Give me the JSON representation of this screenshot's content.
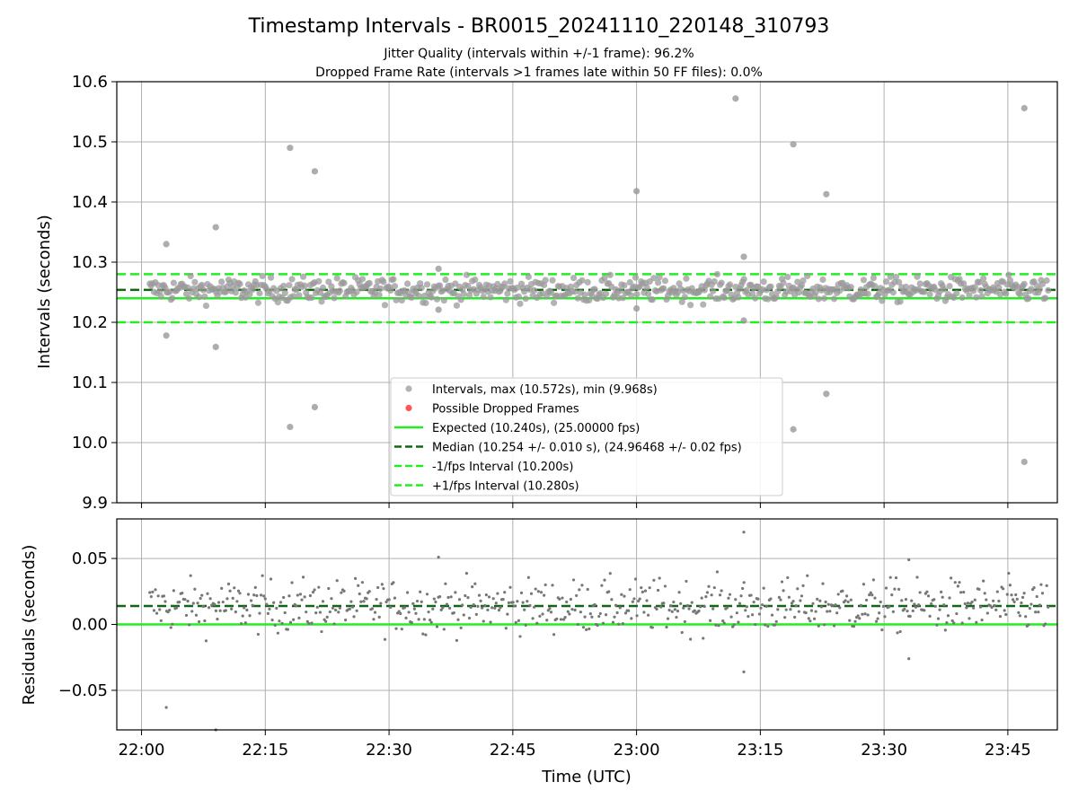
{
  "chart_data": {
    "type": "scatter",
    "title": "Timestamp Intervals - BR0015_20241110_220148_310793",
    "subtitle_lines": [
      "Jitter Quality (intervals within +/-1 frame): 96.2%",
      "Dropped Frame Rate (intervals >1 frames late within 50 FF files): 0.0%"
    ],
    "top_panel": {
      "ylabel": "Intervals (seconds)",
      "ylim": [
        9.9,
        10.6
      ],
      "yticks": [
        9.9,
        10.0,
        10.1,
        10.2,
        10.3,
        10.4,
        10.5,
        10.6
      ],
      "ytick_labels": [
        "9.9",
        "10.0",
        "10.1",
        "10.2",
        "10.3",
        "10.4",
        "10.5",
        "10.6"
      ],
      "grid": true,
      "legend_position": "lower-center",
      "legend": [
        {
          "label": "Intervals, max (10.572s), min (9.968s)",
          "kind": "marker",
          "color": "#999999"
        },
        {
          "label": "Possible Dropped Frames",
          "kind": "marker",
          "color": "#ff5555"
        },
        {
          "label": "Expected (10.240s), (25.00000 fps)",
          "kind": "solid-line",
          "color": "#22ee22"
        },
        {
          "label": "Median (10.254 +/- 0.010 s), (24.96468 +/- 0.02 fps)",
          "kind": "dashed-line",
          "color": "#116611"
        },
        {
          "label": "-1/fps Interval (10.200s)",
          "kind": "dashed-line",
          "color": "#22ee22"
        },
        {
          "label": "+1/fps Interval (10.280s)",
          "kind": "dashed-line",
          "color": "#22ee22"
        }
      ],
      "reference_lines": [
        {
          "name": "expected",
          "y": 10.24,
          "style": "solid",
          "color": "#22ee22"
        },
        {
          "name": "median",
          "y": 10.254,
          "style": "dashed",
          "color": "#116611"
        },
        {
          "name": "minus-one-frame",
          "y": 10.2,
          "style": "dashed",
          "color": "#22ee22"
        },
        {
          "name": "plus-one-frame",
          "y": 10.28,
          "style": "dashed",
          "color": "#22ee22"
        }
      ],
      "scatter_color": "#999999",
      "series_summary": {
        "x_start": "22:01",
        "x_end": "23:50",
        "interval_seconds": 10.24,
        "median": 10.254,
        "spread": 0.01
      },
      "outliers": [
        {
          "x": "22:03",
          "y": 10.33
        },
        {
          "x": "22:03",
          "y": 10.178
        },
        {
          "x": "22:09",
          "y": 10.358
        },
        {
          "x": "22:09",
          "y": 10.159
        },
        {
          "x": "22:18",
          "y": 10.49
        },
        {
          "x": "22:18",
          "y": 10.026
        },
        {
          "x": "22:21",
          "y": 10.451
        },
        {
          "x": "22:21",
          "y": 10.059
        },
        {
          "x": "22:36",
          "y": 10.289
        },
        {
          "x": "22:36",
          "y": 10.221
        },
        {
          "x": "23:00",
          "y": 10.418
        },
        {
          "x": "23:00",
          "y": 10.223
        },
        {
          "x": "23:12",
          "y": 10.572
        },
        {
          "x": "23:13",
          "y": 10.309
        },
        {
          "x": "23:13",
          "y": 10.203
        },
        {
          "x": "23:19",
          "y": 10.496
        },
        {
          "x": "23:19",
          "y": 10.022
        },
        {
          "x": "23:23",
          "y": 10.413
        },
        {
          "x": "23:23",
          "y": 10.081
        },
        {
          "x": "23:47",
          "y": 10.556
        },
        {
          "x": "23:47",
          "y": 9.968
        }
      ]
    },
    "bottom_panel": {
      "ylabel": "Residuals (seconds)",
      "ylim": [
        -0.08,
        0.08
      ],
      "yticks": [
        -0.05,
        0.0,
        0.05
      ],
      "ytick_labels": [
        "−0.05",
        "0.00",
        "0.05"
      ],
      "grid": true,
      "reference_lines": [
        {
          "name": "zero",
          "y": 0.0,
          "style": "solid",
          "color": "#22ee22"
        },
        {
          "name": "median-offset",
          "y": 0.014,
          "style": "dashed",
          "color": "#116611"
        }
      ],
      "scatter_color": "#777777",
      "outliers": [
        {
          "x": "22:03",
          "y": -0.063
        },
        {
          "x": "22:09",
          "y": -0.08
        },
        {
          "x": "22:36",
          "y": 0.051
        },
        {
          "x": "23:13",
          "y": 0.07
        },
        {
          "x": "23:13",
          "y": -0.036
        },
        {
          "x": "23:33",
          "y": 0.049
        },
        {
          "x": "23:33",
          "y": -0.026
        }
      ]
    },
    "xaxis": {
      "xlabel": "Time (UTC)",
      "xlim": [
        "21:57",
        "23:51"
      ],
      "ticks": [
        "22:00",
        "22:15",
        "22:30",
        "22:45",
        "23:00",
        "23:15",
        "23:30",
        "23:45"
      ]
    }
  }
}
